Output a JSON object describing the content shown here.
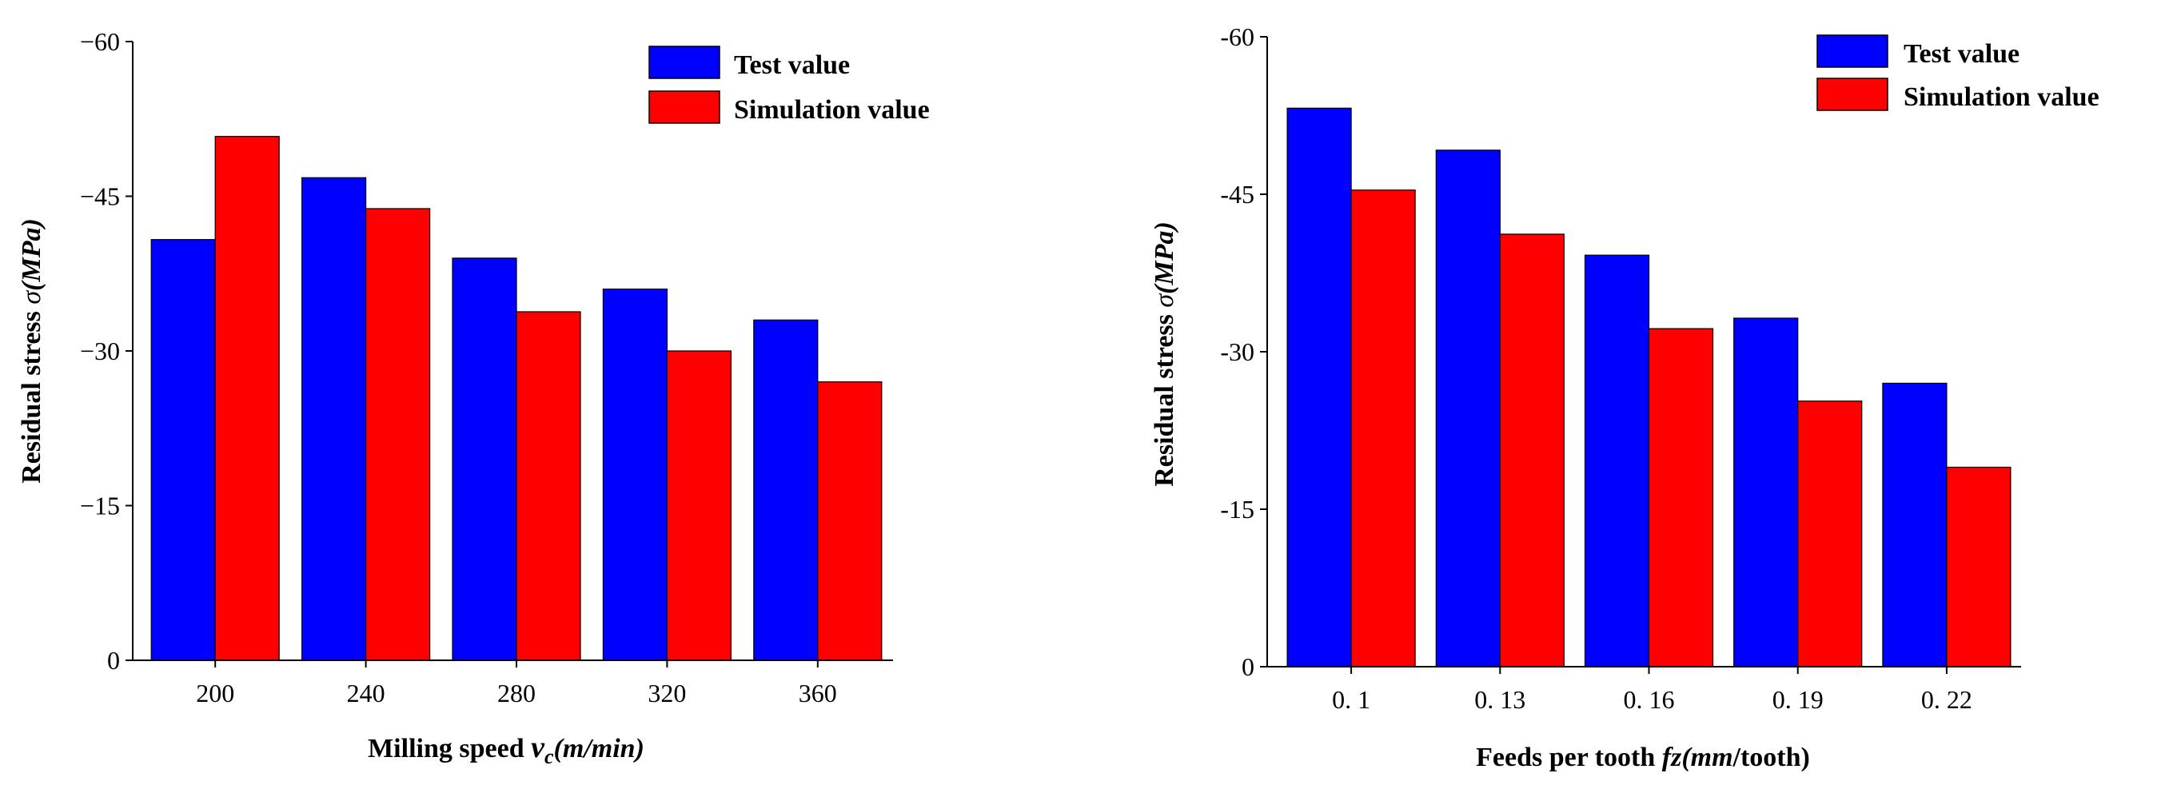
{
  "chart_data": [
    {
      "type": "bar",
      "title": "",
      "categories": [
        "200",
        "240",
        "280",
        "320",
        "360"
      ],
      "series": [
        {
          "name": "Test value",
          "color": "#0000ff",
          "values": [
            -40.8,
            -46.8,
            -39.0,
            -36.0,
            -33.0
          ]
        },
        {
          "name": "Simulation value",
          "color": "#ff0000",
          "values": [
            -50.8,
            -43.8,
            -33.8,
            -30.0,
            -27.0
          ]
        }
      ],
      "xlabel_parts": [
        "Milling speed ",
        "v",
        "c",
        "(m/min)"
      ],
      "ylabel_parts": [
        "Residual stress ",
        "σ",
        "(MPa)"
      ],
      "ylim": [
        0,
        -60
      ],
      "yticks": [
        0,
        -15,
        -30,
        -45,
        -60
      ],
      "ytick_labels": [
        "0",
        "−15",
        "−30",
        "−45",
        "−60"
      ],
      "legend_position": "top-right"
    },
    {
      "type": "bar",
      "title": "",
      "categories": [
        "0. 1",
        "0. 13",
        "0. 16",
        "0. 19",
        "0. 22"
      ],
      "series": [
        {
          "name": "Test value",
          "color": "#0000ff",
          "values": [
            -53.2,
            -49.2,
            -39.2,
            -33.2,
            -27.0
          ]
        },
        {
          "name": "Simulation value",
          "color": "#ff0000",
          "values": [
            -45.4,
            -41.2,
            -32.2,
            -25.3,
            -19.0
          ]
        }
      ],
      "xlabel_parts": [
        "Feeds per tooth ",
        "fz",
        "(mm",
        "/tooth)"
      ],
      "ylabel_parts": [
        "Residual stress ",
        "σ",
        "(MPa)"
      ],
      "ylim": [
        0,
        -60
      ],
      "yticks": [
        0,
        -15,
        -30,
        -45,
        -60
      ],
      "ytick_labels": [
        "0",
        "-15",
        "-30",
        "-45",
        "-60"
      ],
      "legend_position": "top-right"
    }
  ]
}
